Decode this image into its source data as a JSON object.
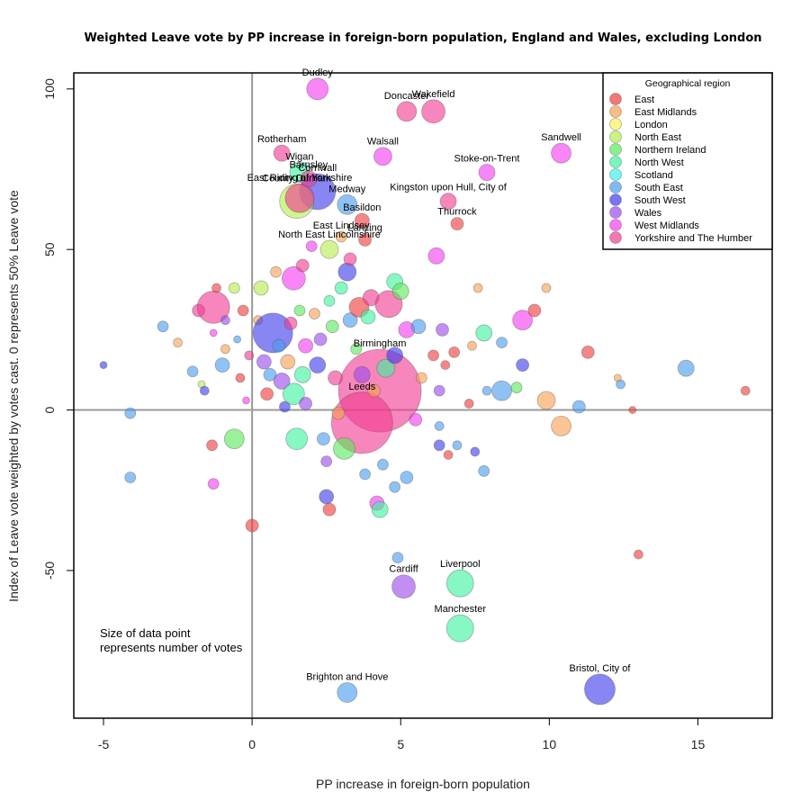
{
  "chart_data": {
    "type": "scatter",
    "title": "Weighted Leave vote by PP increase in foreign-born population, England and Wales, excluding London",
    "xlabel": "PP increase in foreign-born population",
    "ylabel": "Index of Leave vote weighted by votes cast. 0 represents 50% Leave vote",
    "xlim": [
      -6,
      17.5
    ],
    "ylim": [
      -96,
      105
    ],
    "x_ticks": [
      -5,
      0,
      5,
      10,
      15
    ],
    "y_ticks": [
      -50,
      0,
      50,
      100
    ],
    "reference_lines": {
      "x": 0,
      "y": 0
    },
    "note": [
      "Size of data point",
      "represents number of votes"
    ],
    "legend": {
      "title": "Geographical region",
      "position": "top-right",
      "entries": [
        {
          "name": "East",
          "color": "#F03C3C"
        },
        {
          "name": "East Midlands",
          "color": "#F7A052"
        },
        {
          "name": "London",
          "color": "#F6F25A"
        },
        {
          "name": "North East",
          "color": "#B4EE4E"
        },
        {
          "name": "Northern Ireland",
          "color": "#5AE85A"
        },
        {
          "name": "North West",
          "color": "#3EF29E"
        },
        {
          "name": "Scotland",
          "color": "#3FF0F0"
        },
        {
          "name": "South East",
          "color": "#4A9CEE"
        },
        {
          "name": "South West",
          "color": "#3E3CEB"
        },
        {
          "name": "Wales",
          "color": "#9B4AEE"
        },
        {
          "name": "West Midlands",
          "color": "#F43CF2"
        },
        {
          "name": "Yorkshire and The Humber",
          "color": "#F03C92"
        }
      ]
    },
    "labeled_points": [
      {
        "name": "Dudley",
        "x": 2.2,
        "y": 100,
        "region": "West Midlands",
        "size": 12
      },
      {
        "name": "Doncaster",
        "x": 5.2,
        "y": 93,
        "region": "Yorkshire and The Humber",
        "size": 11
      },
      {
        "name": "Wakefield",
        "x": 6.1,
        "y": 93,
        "region": "Yorkshire and The Humber",
        "size": 13
      },
      {
        "name": "Rotherham",
        "x": 1.0,
        "y": 80,
        "region": "Yorkshire and The Humber",
        "size": 9
      },
      {
        "name": "Walsall",
        "x": 4.4,
        "y": 79,
        "region": "West Midlands",
        "size": 10
      },
      {
        "name": "Sandwell",
        "x": 10.4,
        "y": 80,
        "region": "West Midlands",
        "size": 11
      },
      {
        "name": "Stoke-on-Trent",
        "x": 7.9,
        "y": 74,
        "region": "West Midlands",
        "size": 9
      },
      {
        "name": "Wigan",
        "x": 1.6,
        "y": 74,
        "region": "North West",
        "size": 11
      },
      {
        "name": "Barnsley",
        "x": 1.9,
        "y": 72,
        "region": "Yorkshire and The Humber",
        "size": 9
      },
      {
        "name": "Cornwall",
        "x": 2.2,
        "y": 68,
        "region": "South West",
        "size": 20
      },
      {
        "name": "East Riding of Yorkshire",
        "x": 1.6,
        "y": 66,
        "region": "Yorkshire and The Humber",
        "size": 16
      },
      {
        "name": "County Durham",
        "x": 1.5,
        "y": 65,
        "region": "North East",
        "size": 19
      },
      {
        "name": "Medway",
        "x": 3.2,
        "y": 64,
        "region": "South East",
        "size": 11
      },
      {
        "name": "Kingston upon Hull, City of",
        "x": 6.6,
        "y": 65,
        "region": "Yorkshire and The Humber",
        "size": 9
      },
      {
        "name": "Basildon",
        "x": 3.7,
        "y": 59,
        "region": "East",
        "size": 8
      },
      {
        "name": "Thurrock",
        "x": 6.9,
        "y": 58,
        "region": "East",
        "size": 7
      },
      {
        "name": "East Lindsey",
        "x": 3.0,
        "y": 54,
        "region": "East Midlands",
        "size": 6
      },
      {
        "name": "Lancing",
        "x": 3.8,
        "y": 53,
        "region": "East",
        "size": 7
      },
      {
        "name": "North East Lincolnshire",
        "x": 2.6,
        "y": 50,
        "region": "North East",
        "size": 10
      },
      {
        "name": "Birmingham",
        "x": 4.3,
        "y": 6,
        "region": "Yorkshire and The Humber",
        "size": 46
      },
      {
        "name": "Leeds",
        "x": 3.7,
        "y": -4,
        "region": "Yorkshire and The Humber",
        "size": 34
      },
      {
        "name": "Liverpool",
        "x": 7.0,
        "y": -54,
        "region": "North West",
        "size": 15
      },
      {
        "name": "Cardiff",
        "x": 5.1,
        "y": -55,
        "region": "Wales",
        "size": 13
      },
      {
        "name": "Manchester",
        "x": 7.0,
        "y": -68,
        "region": "North West",
        "size": 15
      },
      {
        "name": "Brighton and Hove",
        "x": 3.2,
        "y": -88,
        "region": "South East",
        "size": 11
      },
      {
        "name": "Bristol, City of",
        "x": 11.7,
        "y": -87,
        "region": "South West",
        "size": 17
      }
    ],
    "points": [
      {
        "x": -5,
        "y": 14,
        "region": "South West",
        "size": 4
      },
      {
        "x": -4.1,
        "y": -1,
        "region": "South East",
        "size": 6
      },
      {
        "x": -4.1,
        "y": -21,
        "region": "South East",
        "size": 6
      },
      {
        "x": -3.0,
        "y": 26,
        "region": "South East",
        "size": 6
      },
      {
        "x": -2.5,
        "y": 21,
        "region": "East Midlands",
        "size": 5
      },
      {
        "x": -2.0,
        "y": 12,
        "region": "South East",
        "size": 6
      },
      {
        "x": -1.8,
        "y": 31,
        "region": "Yorkshire and The Humber",
        "size": 7
      },
      {
        "x": -1.7,
        "y": 8,
        "region": "North East",
        "size": 4
      },
      {
        "x": -1.6,
        "y": 6,
        "region": "South West",
        "size": 5
      },
      {
        "x": -1.3,
        "y": 32,
        "region": "Yorkshire and The Humber",
        "size": 18
      },
      {
        "x": -1.3,
        "y": 24,
        "region": "West Midlands",
        "size": 4
      },
      {
        "x": -1.2,
        "y": 38,
        "region": "East",
        "size": 5
      },
      {
        "x": -1.3,
        "y": -23,
        "region": "West Midlands",
        "size": 6
      },
      {
        "x": -1.35,
        "y": -11,
        "region": "East",
        "size": 6
      },
      {
        "x": -1.0,
        "y": 14,
        "region": "South East",
        "size": 8
      },
      {
        "x": -0.9,
        "y": 28,
        "region": "Wales",
        "size": 5
      },
      {
        "x": -0.9,
        "y": 19,
        "region": "East Midlands",
        "size": 5
      },
      {
        "x": -0.6,
        "y": -9,
        "region": "Northern Ireland",
        "size": 11
      },
      {
        "x": -0.6,
        "y": 38,
        "region": "North East",
        "size": 6
      },
      {
        "x": -0.5,
        "y": 22,
        "region": "South East",
        "size": 4
      },
      {
        "x": -0.3,
        "y": 31,
        "region": "East",
        "size": 6
      },
      {
        "x": -0.4,
        "y": 10,
        "region": "East",
        "size": 5
      },
      {
        "x": -0.2,
        "y": 3,
        "region": "West Midlands",
        "size": 4
      },
      {
        "x": -0.1,
        "y": 17,
        "region": "Yorkshire and The Humber",
        "size": 5
      },
      {
        "x": 0.0,
        "y": -36,
        "region": "East",
        "size": 7
      },
      {
        "x": 0.2,
        "y": 28,
        "region": "East Midlands",
        "size": 5
      },
      {
        "x": 0.3,
        "y": 38,
        "region": "North East",
        "size": 8
      },
      {
        "x": 0.4,
        "y": 15,
        "region": "Wales",
        "size": 8
      },
      {
        "x": 0.5,
        "y": 5,
        "region": "East",
        "size": 7
      },
      {
        "x": 0.6,
        "y": 11,
        "region": "South East",
        "size": 7
      },
      {
        "x": 0.7,
        "y": 24,
        "region": "South West",
        "size": 22
      },
      {
        "x": 0.8,
        "y": 43,
        "region": "East Midlands",
        "size": 6
      },
      {
        "x": 0.9,
        "y": 20,
        "region": "South East",
        "size": 7
      },
      {
        "x": 1.0,
        "y": 9,
        "region": "Wales",
        "size": 9
      },
      {
        "x": 1.1,
        "y": 1,
        "region": "South West",
        "size": 6
      },
      {
        "x": 1.2,
        "y": 15,
        "region": "East Midlands",
        "size": 8
      },
      {
        "x": 1.3,
        "y": 27,
        "region": "Yorkshire and The Humber",
        "size": 7
      },
      {
        "x": 1.4,
        "y": 5,
        "region": "North West",
        "size": 12
      },
      {
        "x": 1.4,
        "y": 41,
        "region": "West Midlands",
        "size": 13
      },
      {
        "x": 1.5,
        "y": -9,
        "region": "North West",
        "size": 12
      },
      {
        "x": 1.6,
        "y": 31,
        "region": "Northern Ireland",
        "size": 6
      },
      {
        "x": 1.7,
        "y": 11,
        "region": "North West",
        "size": 9
      },
      {
        "x": 1.7,
        "y": 45,
        "region": "Yorkshire and The Humber",
        "size": 7
      },
      {
        "x": 1.8,
        "y": 20,
        "region": "West Midlands",
        "size": 8
      },
      {
        "x": 1.8,
        "y": 2,
        "region": "Wales",
        "size": 7
      },
      {
        "x": 2.0,
        "y": 51,
        "region": "West Midlands",
        "size": 6
      },
      {
        "x": 2.1,
        "y": 30,
        "region": "East Midlands",
        "size": 6
      },
      {
        "x": 2.2,
        "y": 14,
        "region": "South West",
        "size": 9
      },
      {
        "x": 2.3,
        "y": 22,
        "region": "Wales",
        "size": 7
      },
      {
        "x": 2.4,
        "y": -9,
        "region": "South East",
        "size": 7
      },
      {
        "x": 2.5,
        "y": -16,
        "region": "Wales",
        "size": 6
      },
      {
        "x": 2.5,
        "y": -27,
        "region": "South West",
        "size": 8
      },
      {
        "x": 2.6,
        "y": -31,
        "region": "East",
        "size": 7
      },
      {
        "x": 2.6,
        "y": 34,
        "region": "North West",
        "size": 6
      },
      {
        "x": 2.7,
        "y": 26,
        "region": "Northern Ireland",
        "size": 7
      },
      {
        "x": 2.8,
        "y": 10,
        "region": "Yorkshire and The Humber",
        "size": 8
      },
      {
        "x": 2.9,
        "y": -1,
        "region": "East Midlands",
        "size": 7
      },
      {
        "x": 3.0,
        "y": 38,
        "region": "North West",
        "size": 7
      },
      {
        "x": 3.1,
        "y": -12,
        "region": "Northern Ireland",
        "size": 12
      },
      {
        "x": 3.2,
        "y": 43,
        "region": "South West",
        "size": 10
      },
      {
        "x": 3.3,
        "y": 28,
        "region": "South East",
        "size": 8
      },
      {
        "x": 3.3,
        "y": 47,
        "region": "Yorkshire and The Humber",
        "size": 7
      },
      {
        "x": 3.5,
        "y": 19,
        "region": "Northern Ireland",
        "size": 6
      },
      {
        "x": 3.6,
        "y": 32,
        "region": "East",
        "size": 11
      },
      {
        "x": 3.7,
        "y": 11,
        "region": "Wales",
        "size": 9
      },
      {
        "x": 3.8,
        "y": -20,
        "region": "South East",
        "size": 6
      },
      {
        "x": 3.9,
        "y": 29,
        "region": "North West",
        "size": 8
      },
      {
        "x": 4.0,
        "y": 35,
        "region": "Yorkshire and The Humber",
        "size": 9
      },
      {
        "x": 4.1,
        "y": 6,
        "region": "East Midlands",
        "size": 7
      },
      {
        "x": 4.2,
        "y": -29,
        "region": "West Midlands",
        "size": 8
      },
      {
        "x": 4.3,
        "y": -31,
        "region": "North West",
        "size": 9
      },
      {
        "x": 4.4,
        "y": -17,
        "region": "South East",
        "size": 6
      },
      {
        "x": 4.5,
        "y": 13,
        "region": "North West",
        "size": 10
      },
      {
        "x": 4.6,
        "y": 33,
        "region": "Yorkshire and The Humber",
        "size": 15
      },
      {
        "x": 4.8,
        "y": 40,
        "region": "North West",
        "size": 9
      },
      {
        "x": 4.8,
        "y": 17,
        "region": "South West",
        "size": 9
      },
      {
        "x": 4.8,
        "y": -24,
        "region": "South East",
        "size": 6
      },
      {
        "x": 4.9,
        "y": -46,
        "region": "South East",
        "size": 6
      },
      {
        "x": 5.0,
        "y": 37,
        "region": "Northern Ireland",
        "size": 9
      },
      {
        "x": 5.2,
        "y": 25,
        "region": "West Midlands",
        "size": 9
      },
      {
        "x": 5.2,
        "y": -21,
        "region": "South East",
        "size": 7
      },
      {
        "x": 5.5,
        "y": -3,
        "region": "West Midlands",
        "size": 7
      },
      {
        "x": 5.6,
        "y": 26,
        "region": "South East",
        "size": 8
      },
      {
        "x": 5.7,
        "y": 10,
        "region": "East Midlands",
        "size": 6
      },
      {
        "x": 6.1,
        "y": 17,
        "region": "East",
        "size": 6
      },
      {
        "x": 6.2,
        "y": 48,
        "region": "West Midlands",
        "size": 9
      },
      {
        "x": 6.3,
        "y": 6,
        "region": "Wales",
        "size": 6
      },
      {
        "x": 6.3,
        "y": -5,
        "region": "South East",
        "size": 5
      },
      {
        "x": 6.3,
        "y": -11,
        "region": "South West",
        "size": 6
      },
      {
        "x": 6.4,
        "y": 25,
        "region": "Wales",
        "size": 7
      },
      {
        "x": 6.5,
        "y": 14,
        "region": "East",
        "size": 5
      },
      {
        "x": 6.9,
        "y": -11,
        "region": "South East",
        "size": 5
      },
      {
        "x": 6.6,
        "y": -14,
        "region": "East",
        "size": 5
      },
      {
        "x": 6.8,
        "y": 18,
        "region": "East",
        "size": 6
      },
      {
        "x": 7.3,
        "y": 2,
        "region": "East",
        "size": 5
      },
      {
        "x": 7.4,
        "y": 20,
        "region": "East Midlands",
        "size": 5
      },
      {
        "x": 7.5,
        "y": -13,
        "region": "South West",
        "size": 5
      },
      {
        "x": 7.6,
        "y": 38,
        "region": "East Midlands",
        "size": 5
      },
      {
        "x": 7.8,
        "y": 24,
        "region": "North West",
        "size": 9
      },
      {
        "x": 7.8,
        "y": -19,
        "region": "South East",
        "size": 6
      },
      {
        "x": 7.9,
        "y": 6,
        "region": "South East",
        "size": 5
      },
      {
        "x": 8.4,
        "y": 6,
        "region": "South East",
        "size": 11
      },
      {
        "x": 8.4,
        "y": 21,
        "region": "South East",
        "size": 6
      },
      {
        "x": 8.9,
        "y": 7,
        "region": "Northern Ireland",
        "size": 6
      },
      {
        "x": 9.1,
        "y": 28,
        "region": "West Midlands",
        "size": 11
      },
      {
        "x": 9.1,
        "y": 14,
        "region": "South West",
        "size": 7
      },
      {
        "x": 9.5,
        "y": 31,
        "region": "East",
        "size": 7
      },
      {
        "x": 9.9,
        "y": 38,
        "region": "East Midlands",
        "size": 5
      },
      {
        "x": 9.9,
        "y": 3,
        "region": "East Midlands",
        "size": 10
      },
      {
        "x": 10.4,
        "y": -5,
        "region": "East Midlands",
        "size": 11
      },
      {
        "x": 11.0,
        "y": 1,
        "region": "South East",
        "size": 7
      },
      {
        "x": 11.3,
        "y": 18,
        "region": "East",
        "size": 7
      },
      {
        "x": 12.4,
        "y": 8,
        "region": "South East",
        "size": 5
      },
      {
        "x": 12.3,
        "y": 10,
        "region": "East Midlands",
        "size": 4
      },
      {
        "x": 12.8,
        "y": 0,
        "region": "East",
        "size": 4
      },
      {
        "x": 13.0,
        "y": -45,
        "region": "East",
        "size": 5
      },
      {
        "x": 14.6,
        "y": 13,
        "region": "South East",
        "size": 9
      },
      {
        "x": 16.6,
        "y": 6,
        "region": "East",
        "size": 5
      }
    ]
  }
}
